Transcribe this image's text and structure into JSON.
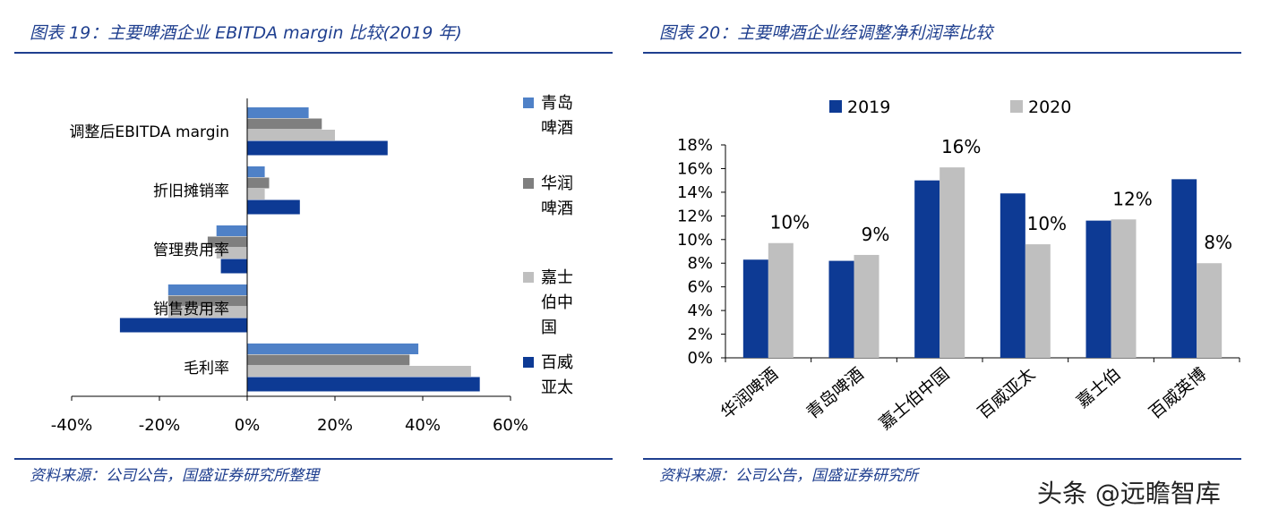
{
  "left": {
    "title": "图表 19：主要啤酒企业 EBITDA margin 比较(2019 年)",
    "source": "资料来源：公司公告，国盛证券研究所整理"
  },
  "right": {
    "title": "图表 20：主要啤酒企业经调整净利润率比较",
    "source": "资料来源：公司公告，国盛证券研究所"
  },
  "watermark": "头条 @远瞻智库",
  "chart_data": [
    {
      "type": "bar",
      "orientation": "horizontal",
      "categories": [
        "调整后EBITDA margin",
        "折旧摊销率",
        "管理费用率",
        "销售费用率",
        "毛利率"
      ],
      "series": [
        {
          "name": "青岛啤酒",
          "color": "#4f81c7",
          "values": [
            14,
            4,
            -7,
            -18,
            39
          ]
        },
        {
          "name": "华润啤酒",
          "color": "#7f7f7f",
          "values": [
            17,
            5,
            -9,
            -18,
            37
          ]
        },
        {
          "name": "嘉士伯中国",
          "color": "#bfbfbf",
          "values": [
            20,
            4,
            -7,
            -18,
            51
          ]
        },
        {
          "name": "百威亚太",
          "color": "#0d3a94",
          "values": [
            32,
            12,
            -6,
            -29,
            53
          ]
        }
      ],
      "xlim": [
        -40,
        60
      ],
      "xticks": [
        "-40%",
        "-20%",
        "0%",
        "20%",
        "40%",
        "60%"
      ],
      "legend": "right"
    },
    {
      "type": "bar",
      "categories": [
        "华润啤酒",
        "青岛啤酒",
        "嘉士伯中国",
        "百威亚太",
        "嘉士伯",
        "百威英博"
      ],
      "series": [
        {
          "name": "2019",
          "color": "#0d3a94",
          "values": [
            8.3,
            8.2,
            15.0,
            13.9,
            11.6,
            15.1
          ]
        },
        {
          "name": "2020",
          "color": "#bfbfbf",
          "values": [
            9.7,
            8.7,
            16.1,
            9.6,
            11.7,
            8.0
          ],
          "labels": [
            "10%",
            "9%",
            "16%",
            "10%",
            "12%",
            "8%"
          ]
        }
      ],
      "ylim": [
        0,
        18
      ],
      "yticks": [
        "0%",
        "2%",
        "4%",
        "6%",
        "8%",
        "10%",
        "12%",
        "14%",
        "16%",
        "18%"
      ],
      "legend": "top"
    }
  ]
}
